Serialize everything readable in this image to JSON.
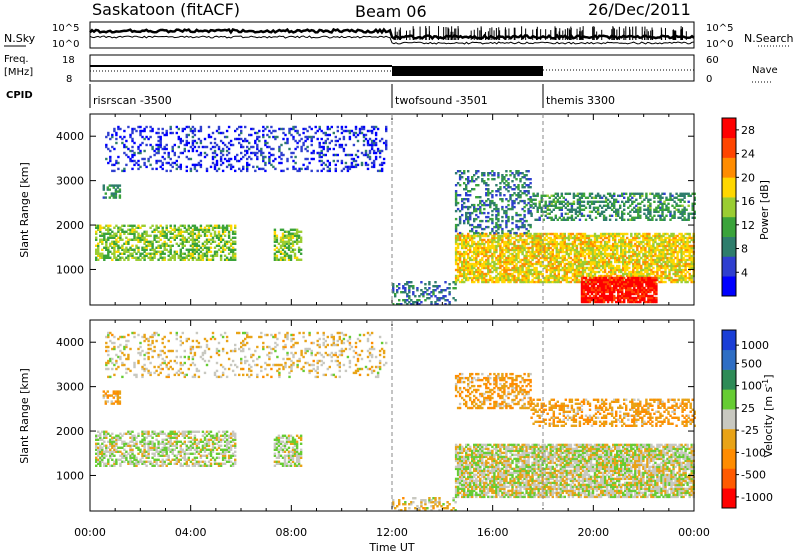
{
  "header": {
    "station": "Saskatoon (fitACF)",
    "beam": "Beam 06",
    "date": "26/Dec/2011"
  },
  "top_panels": {
    "nsky_label": "N.Sky",
    "nsky_ticks": [
      "10^5",
      "10^0"
    ],
    "nsearch_label": "N.Search",
    "nsearch_ticks": [
      "10^5",
      "10^0"
    ],
    "freq_label": "Freq.",
    "freq_unit": "[MHz]",
    "freq_ticks": [
      "18",
      "8"
    ],
    "nave_label": "Nave",
    "nave_ticks": [
      "60",
      "0"
    ],
    "cpid_label": "CPID",
    "cpid_segments": [
      {
        "name": "risrscan -3500",
        "start": 0
      },
      {
        "name": "twofsound -3501",
        "start": 12
      },
      {
        "name": "themis 3300",
        "start": 18
      }
    ]
  },
  "colors": {
    "power_scale": [
      "#0000ff",
      "#2f3fcf",
      "#2e7d6c",
      "#3aa33a",
      "#9acd32",
      "#ffd700",
      "#ff8c00",
      "#ff4500",
      "#ff0000"
    ],
    "velocity_scale": [
      "#1a3ed6",
      "#2e6ec4",
      "#2e8b57",
      "#66cc33",
      "#c8c8c0",
      "#e8a317",
      "#ff8c00",
      "#ff5a00",
      "#ff0000"
    ],
    "ground_scatter": "#c8c8c0"
  },
  "chart_data": [
    {
      "type": "heatmap",
      "title": "Power",
      "xlabel": "Time UT",
      "ylabel": "Slant Range [km]",
      "x_ticks": [
        "00:00",
        "04:00",
        "08:00",
        "12:00",
        "16:00",
        "20:00",
        "00:00"
      ],
      "xlim": [
        0,
        24
      ],
      "y_ticks": [
        "1000",
        "2000",
        "3000",
        "4000"
      ],
      "ylim": [
        200,
        4500
      ],
      "colorbar": {
        "label": "Power [dB]",
        "ticks": [
          "4",
          "8",
          "12",
          "16",
          "20",
          "24",
          "28"
        ],
        "range": [
          0,
          30
        ]
      },
      "regions": [
        {
          "t0": 0.6,
          "t1": 11.8,
          "r0": 3200,
          "r1": 4200,
          "level": 4,
          "density": 0.25
        },
        {
          "t0": 0.5,
          "t1": 1.2,
          "r0": 2600,
          "r1": 2900,
          "level": 10,
          "density": 0.5
        },
        {
          "t0": 0.2,
          "t1": 5.8,
          "r0": 1200,
          "r1": 2000,
          "level": 14,
          "density": 0.55
        },
        {
          "t0": 7.3,
          "t1": 8.4,
          "r0": 1200,
          "r1": 1900,
          "level": 14,
          "density": 0.6
        },
        {
          "t0": 12.0,
          "t1": 14.5,
          "r0": 200,
          "r1": 700,
          "level": 8,
          "density": 0.3
        },
        {
          "t0": 14.5,
          "t1": 24.0,
          "r0": 700,
          "r1": 1800,
          "level": 18,
          "density": 0.75
        },
        {
          "t0": 14.5,
          "t1": 17.5,
          "r0": 1800,
          "r1": 3200,
          "level": 8,
          "density": 0.35
        },
        {
          "t0": 17.5,
          "t1": 24.0,
          "r0": 2100,
          "r1": 2700,
          "level": 10,
          "density": 0.45
        },
        {
          "t0": 19.5,
          "t1": 22.5,
          "r0": 250,
          "r1": 800,
          "level": 28,
          "density": 0.85
        }
      ]
    },
    {
      "type": "heatmap",
      "title": "Velocity",
      "xlabel": "Time UT",
      "ylabel": "Slant Range [km]",
      "x_ticks": [
        "00:00",
        "04:00",
        "08:00",
        "12:00",
        "16:00",
        "20:00",
        "00:00"
      ],
      "xlim": [
        0,
        24
      ],
      "y_ticks": [
        "1000",
        "2000",
        "3000",
        "4000"
      ],
      "ylim": [
        200,
        4500
      ],
      "colorbar": {
        "label": "Velocity [m s^-1]",
        "ticks": [
          "1000",
          "500",
          "100",
          "25",
          "-25",
          "-100",
          "-500",
          "-1000"
        ],
        "range": [
          -1000,
          1000
        ]
      },
      "regions": [
        {
          "t0": 0.6,
          "t1": 11.8,
          "r0": 3200,
          "r1": 4200,
          "level": -100,
          "density": 0.2
        },
        {
          "t0": 0.5,
          "t1": 1.2,
          "r0": 2600,
          "r1": 2900,
          "level": -300,
          "density": 0.5
        },
        {
          "t0": 0.2,
          "t1": 5.8,
          "r0": 1200,
          "r1": 2000,
          "level": 50,
          "density": 0.55
        },
        {
          "t0": 7.3,
          "t1": 8.4,
          "r0": 1200,
          "r1": 1900,
          "level": 60,
          "density": 0.6
        },
        {
          "t0": 12.0,
          "t1": 14.5,
          "r0": 200,
          "r1": 500,
          "level": -100,
          "density": 0.35
        },
        {
          "t0": 14.5,
          "t1": 24.0,
          "r0": 500,
          "r1": 1700,
          "level": 0,
          "density": 0.8
        },
        {
          "t0": 14.5,
          "t1": 17.5,
          "r0": 2500,
          "r1": 3300,
          "level": -300,
          "density": 0.45
        },
        {
          "t0": 17.5,
          "t1": 24.0,
          "r0": 2100,
          "r1": 2700,
          "level": -300,
          "density": 0.45
        }
      ]
    }
  ],
  "xaxis_title": "Time UT"
}
